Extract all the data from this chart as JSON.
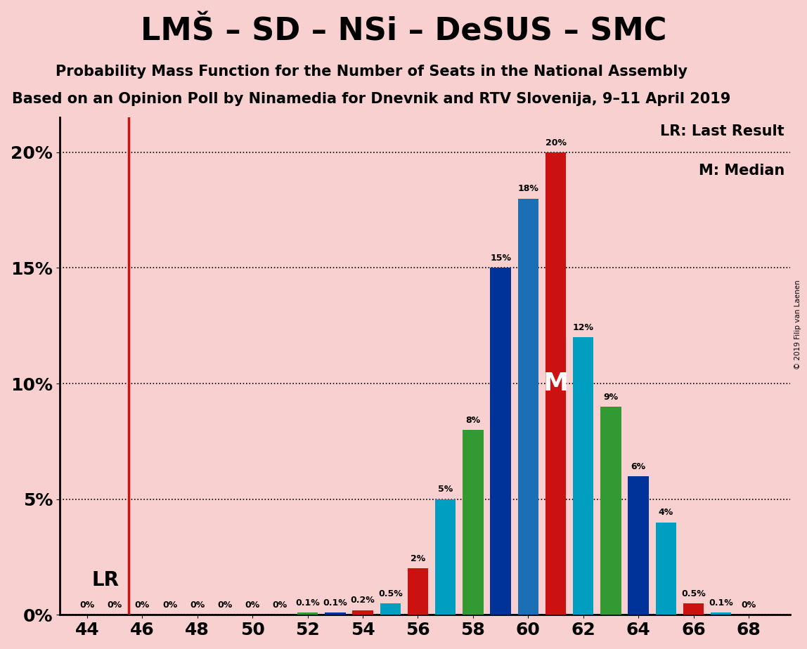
{
  "title": "LMŠ – SD – NSi – DeSUS – SMC",
  "subtitle1": "Probability Mass Function for the Number of Seats in the National Assembly",
  "subtitle2": "Based on an Opinion Poll by Ninamedia for Dnevnik and RTV Slovenija, 9–11 April 2019",
  "copyright": "© 2019 Filip van Laenen",
  "background_color": "#f9d0d0",
  "lr_x": 45.5,
  "median_seat": 61,
  "median_y": 10.0,
  "seats": [
    44,
    45,
    46,
    47,
    48,
    49,
    50,
    51,
    52,
    53,
    54,
    55,
    56,
    57,
    58,
    59,
    60,
    61,
    62,
    63,
    64,
    65,
    66,
    67,
    68
  ],
  "values": [
    0.0,
    0.0,
    0.0,
    0.0,
    0.0,
    0.0,
    0.0,
    0.0,
    0.1,
    0.1,
    0.2,
    0.5,
    2.0,
    5.0,
    8.0,
    15.0,
    18.0,
    20.0,
    12.0,
    9.0,
    6.0,
    4.0,
    0.5,
    0.1,
    0.0
  ],
  "bar_colors": [
    "#cc0000",
    "#009ec0",
    "#339933",
    "#003399",
    "#cc0000",
    "#009ec0",
    "#339933",
    "#003399",
    "#339933",
    "#003399",
    "#cc0000",
    "#009ec0",
    "#cc0000",
    "#009ec0",
    "#339933",
    "#003399",
    "#1a6fb5",
    "#cc0000",
    "#009ec0",
    "#339933",
    "#003399",
    "#009ec0",
    "#cc0000",
    "#009ec0",
    "#339933"
  ],
  "xlim": [
    43.0,
    69.5
  ],
  "ylim": [
    0,
    21.5
  ],
  "yticks": [
    0,
    5,
    10,
    15,
    20
  ],
  "ytick_labels": [
    "0%",
    "5%",
    "10%",
    "15%",
    "20%"
  ],
  "xticks": [
    44,
    46,
    48,
    50,
    52,
    54,
    56,
    58,
    60,
    62,
    64,
    66,
    68
  ],
  "bar_width": 0.75,
  "title_fontsize": 32,
  "subtitle_fontsize": 15,
  "tick_fontsize": 18,
  "label_fontsize": 9,
  "legend_fontsize": 15,
  "lr_fontsize": 20,
  "median_fontsize": 26
}
